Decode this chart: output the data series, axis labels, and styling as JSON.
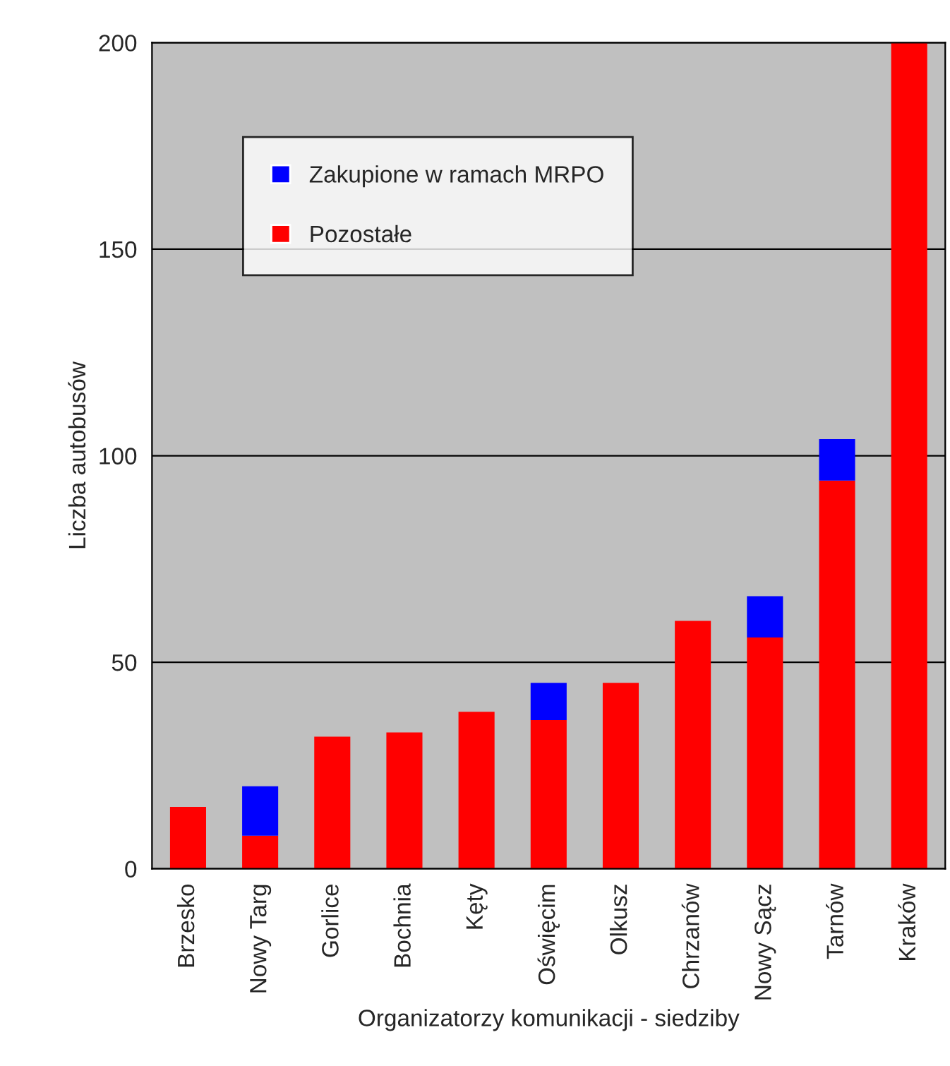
{
  "chart_data": {
    "type": "bar",
    "stacked": true,
    "xlabel": "Organizatorzy komunikacji - siedziby",
    "ylabel": "Liczba autobusów",
    "categories": [
      "Brzesko",
      "Nowy Targ",
      "Gorlice",
      "Bochnia",
      "Kęty",
      "Oświęcim",
      "Olkusz",
      "Chrzanów",
      "Nowy Sącz",
      "Tarnów",
      "Kraków"
    ],
    "series": [
      {
        "name": "Pozostałe",
        "color": "#ff0000",
        "values": [
          15,
          8,
          32,
          33,
          38,
          36,
          45,
          60,
          56,
          94,
          200
        ]
      },
      {
        "name": "Zakupione w ramach MRPO",
        "color": "#0000ff",
        "values": [
          0,
          12,
          0,
          0,
          0,
          9,
          0,
          0,
          10,
          10,
          0
        ]
      }
    ],
    "ylim": [
      0,
      200
    ],
    "yticks": [
      0,
      50,
      100,
      150,
      200
    ],
    "grid": "y",
    "legend": "top left"
  }
}
